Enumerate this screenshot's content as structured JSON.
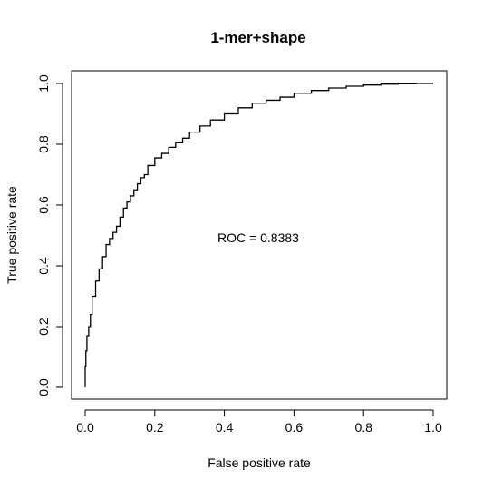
{
  "chart_data": {
    "type": "line",
    "title": "1-mer+shape",
    "xlabel": "False positive rate",
    "ylabel": "True positive rate",
    "xlim": [
      0,
      1
    ],
    "ylim": [
      0,
      1
    ],
    "xticks": [
      "0.0",
      "0.2",
      "0.4",
      "0.6",
      "0.8",
      "1.0"
    ],
    "yticks": [
      "0.0",
      "0.2",
      "0.4",
      "0.6",
      "0.8",
      "1.0"
    ],
    "grid": false,
    "annotation": {
      "text": "ROC =  0.8383",
      "x": 0.5,
      "y": 0.5
    },
    "series": [
      {
        "x": [
          0.0,
          0.002,
          0.005,
          0.01,
          0.015,
          0.02,
          0.03,
          0.04,
          0.05,
          0.06,
          0.07,
          0.08,
          0.09,
          0.1,
          0.11,
          0.12,
          0.13,
          0.14,
          0.15,
          0.16,
          0.17,
          0.18,
          0.2,
          0.22,
          0.24,
          0.26,
          0.28,
          0.3,
          0.33,
          0.36,
          0.4,
          0.44,
          0.48,
          0.52,
          0.56,
          0.6,
          0.65,
          0.7,
          0.75,
          0.8,
          0.85,
          0.9,
          0.95,
          1.0
        ],
        "y": [
          0.0,
          0.07,
          0.12,
          0.17,
          0.2,
          0.24,
          0.3,
          0.35,
          0.39,
          0.43,
          0.47,
          0.49,
          0.51,
          0.53,
          0.56,
          0.59,
          0.61,
          0.63,
          0.65,
          0.67,
          0.69,
          0.7,
          0.73,
          0.755,
          0.77,
          0.79,
          0.805,
          0.82,
          0.84,
          0.86,
          0.88,
          0.9,
          0.92,
          0.935,
          0.945,
          0.955,
          0.968,
          0.977,
          0.985,
          0.991,
          0.995,
          0.998,
          0.999,
          1.0
        ]
      }
    ]
  }
}
